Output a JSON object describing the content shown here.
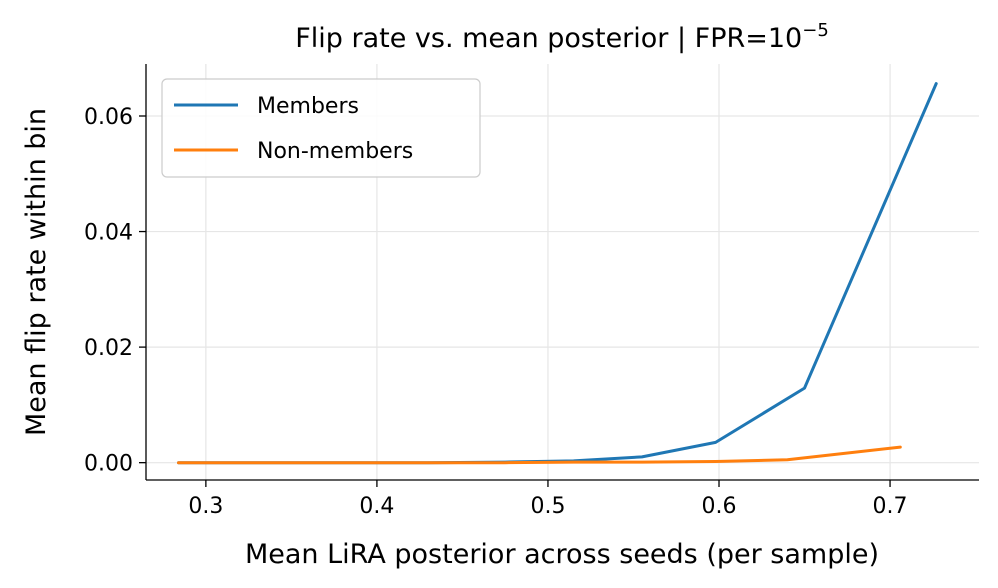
{
  "chart_data": {
    "type": "line",
    "title_main": "Flip rate vs. mean posterior  |  FPR=10",
    "title_sup": "−5",
    "xlabel": "Mean LiRA posterior across seeds (per sample)",
    "ylabel": "Mean flip rate within bin",
    "xlim": [
      0.265,
      0.752
    ],
    "ylim": [
      -0.003,
      0.069
    ],
    "xticks": [
      0.3,
      0.4,
      0.5,
      0.6,
      0.7
    ],
    "xtick_labels": [
      "0.3",
      "0.4",
      "0.5",
      "0.6",
      "0.7"
    ],
    "yticks": [
      0.0,
      0.02,
      0.04,
      0.06
    ],
    "ytick_labels": [
      "0.00",
      "0.02",
      "0.04",
      "0.06"
    ],
    "grid": true,
    "legend_position": "upper-left",
    "series": [
      {
        "name": "Members",
        "color": "#1f77b4",
        "x": [
          0.284,
          0.33,
          0.38,
          0.43,
          0.475,
          0.515,
          0.555,
          0.598,
          0.65,
          0.727
        ],
        "y": [
          0.0,
          0.0,
          0.0,
          0.0,
          0.0001,
          0.0003,
          0.001,
          0.0035,
          0.0129,
          0.0656
        ]
      },
      {
        "name": "Non-members",
        "color": "#ff7f0e",
        "x": [
          0.284,
          0.33,
          0.38,
          0.43,
          0.475,
          0.515,
          0.555,
          0.598,
          0.64,
          0.706
        ],
        "y": [
          0.0,
          0.0,
          0.0,
          0.0,
          0.0,
          0.0001,
          0.0001,
          0.0002,
          0.0005,
          0.0027
        ]
      }
    ]
  }
}
